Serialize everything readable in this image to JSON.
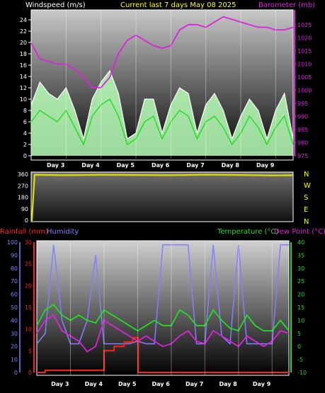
{
  "title": "Current last 7 days May 08 2025",
  "colors": {
    "title": "#ffff00",
    "wind_avg": "#22dd22",
    "wind_gust": "#ffffff",
    "wind_band": "#b8ffb8",
    "barometer": "#dd22dd",
    "direction": "#dddd00",
    "rain": "#ff2020",
    "humidity": "#8080ff",
    "temperature": "#22dd22",
    "dewpoint": "#dd22dd"
  },
  "chart_data": [
    {
      "type": "line",
      "name": "wind-barometer",
      "ylabel_left": "Windspeed (m/s)",
      "ylabel_right": "Barometer (mb)",
      "ylim_left": [
        0,
        25
      ],
      "ylim_right": [
        975,
        1029
      ],
      "yticks_left": [
        "0",
        "2",
        "4",
        "6",
        "8",
        "10",
        "12",
        "14",
        "16",
        "18",
        "20",
        "22",
        "24"
      ],
      "yticks_right": [
        "975",
        "980",
        "985",
        "990",
        "995",
        "1000",
        "1005",
        "1010",
        "1015",
        "1020",
        "1025"
      ],
      "x_days": [
        "Day 3",
        "Day 4",
        "Day 5",
        "Day 6",
        "Day 7",
        "Day 8",
        "Day 9"
      ],
      "x": [
        0,
        0.25,
        0.5,
        0.75,
        1,
        1.25,
        1.5,
        1.75,
        2,
        2.25,
        2.5,
        2.75,
        3,
        3.25,
        3.5,
        3.75,
        4,
        4.25,
        4.5,
        4.75,
        5,
        5.25,
        5.5,
        5.75,
        6,
        6.25,
        6.5,
        6.75,
        7,
        7.25,
        7.5
      ],
      "series": [
        {
          "name": "gust",
          "values": [
            9,
            13,
            11,
            10,
            12,
            8,
            3,
            10,
            13,
            15,
            11,
            3,
            4,
            10,
            10,
            4,
            9,
            12,
            11,
            4,
            9,
            11,
            8,
            3,
            7,
            10,
            8,
            3,
            8,
            11,
            3
          ]
        },
        {
          "name": "average",
          "values": [
            6,
            8,
            7,
            6,
            8,
            5,
            2,
            7,
            9,
            10,
            7,
            2,
            3,
            6,
            7,
            3,
            6,
            8,
            7,
            3,
            6,
            7,
            5,
            2,
            4,
            7,
            5,
            2,
            5,
            7,
            2
          ]
        },
        {
          "name": "barometer",
          "values": [
            1018,
            1012,
            1011,
            1010,
            1010,
            1008,
            1005,
            1001,
            1001,
            1005,
            1014,
            1019,
            1021,
            1019,
            1017,
            1016,
            1017,
            1023,
            1025,
            1025,
            1024,
            1026,
            1028,
            1027,
            1026,
            1025,
            1024,
            1024,
            1023,
            1023,
            1024
          ]
        }
      ]
    },
    {
      "type": "line",
      "name": "wind-direction",
      "yticks_left": [
        "0",
        "90",
        "180",
        "270",
        "360"
      ],
      "ylim": [
        0,
        360
      ],
      "compass": [
        "N",
        "W",
        "S",
        "E",
        "N"
      ],
      "x": [
        0,
        0.02,
        0.1,
        1,
        2,
        3,
        4,
        5,
        6,
        7,
        7.5
      ],
      "values": [
        0,
        0,
        355,
        352,
        355,
        354,
        352,
        356,
        354,
        350,
        352
      ]
    },
    {
      "type": "line",
      "name": "rain-humidity-temperature",
      "ylabel_left": "Rainfall (mm)",
      "ylabel_left2": "Humidity",
      "ylabel_right": "Temperature (°C)",
      "ylabel_right2": "Dew Point (°C)",
      "humidity_ticks": [
        "0",
        "10",
        "20",
        "30",
        "40",
        "50",
        "60",
        "70",
        "80",
        "90",
        "100"
      ],
      "rain_ticks": [
        "0",
        "5",
        "10",
        "15",
        "20",
        "25",
        "30"
      ],
      "temp_ticks": [
        "-10",
        "-5",
        "0",
        "5",
        "10",
        "15",
        "20",
        "25",
        "30",
        "35",
        "40"
      ],
      "ylim_humidity": [
        0,
        100
      ],
      "ylim_rain": [
        0,
        30
      ],
      "ylim_temp": [
        -10,
        40
      ],
      "x_days": [
        "Day 3",
        "Day 4",
        "Day 5",
        "Day 6",
        "Day 7",
        "Day 8",
        "Day 9"
      ],
      "x": [
        0,
        0.25,
        0.5,
        0.75,
        1,
        1.25,
        1.5,
        1.75,
        2,
        2.25,
        2.5,
        2.75,
        3,
        3.25,
        3.5,
        3.75,
        4,
        4.25,
        4.5,
        4.75,
        5,
        5.25,
        5.5,
        5.75,
        6,
        6.25,
        6.5,
        6.75,
        7,
        7.25,
        7.5
      ],
      "series": [
        {
          "name": "humidity",
          "values": [
            22,
            30,
            98,
            40,
            22,
            22,
            40,
            90,
            22,
            22,
            22,
            22,
            24,
            22,
            22,
            98,
            98,
            98,
            98,
            22,
            22,
            98,
            28,
            22,
            98,
            22,
            22,
            22,
            22,
            98,
            98
          ]
        },
        {
          "name": "temperature",
          "values": [
            8,
            14,
            16,
            12,
            10,
            12,
            10,
            9,
            14,
            12,
            10,
            8,
            6,
            8,
            10,
            8,
            8,
            14,
            12,
            8,
            8,
            14,
            10,
            7,
            6,
            12,
            8,
            6,
            6,
            10,
            6
          ]
        },
        {
          "name": "dewpoint",
          "values": [
            5,
            10,
            12,
            6,
            4,
            2,
            -2,
            0,
            10,
            8,
            6,
            4,
            2,
            4,
            2,
            0,
            1,
            4,
            6,
            2,
            1,
            6,
            4,
            2,
            0,
            4,
            2,
            0,
            2,
            6,
            5
          ]
        },
        {
          "name": "rainfall",
          "values": [
            0,
            0,
            0.5,
            0.5,
            0.5,
            0.5,
            0.5,
            0.5,
            0.5,
            0.5,
            0.5,
            0,
            0,
            0,
            0,
            0,
            0,
            0,
            0,
            0,
            0,
            0,
            0,
            0,
            0,
            0,
            0,
            0,
            0,
            0,
            0
          ]
        }
      ],
      "rain_steps": [
        [
          0,
          0
        ],
        [
          0.25,
          0.5
        ],
        [
          1.9,
          0.5
        ],
        [
          2.0,
          5
        ],
        [
          2.3,
          6
        ],
        [
          2.6,
          7
        ],
        [
          2.85,
          8
        ],
        [
          3.0,
          8
        ],
        [
          3.02,
          0
        ],
        [
          7.5,
          0
        ]
      ]
    }
  ]
}
